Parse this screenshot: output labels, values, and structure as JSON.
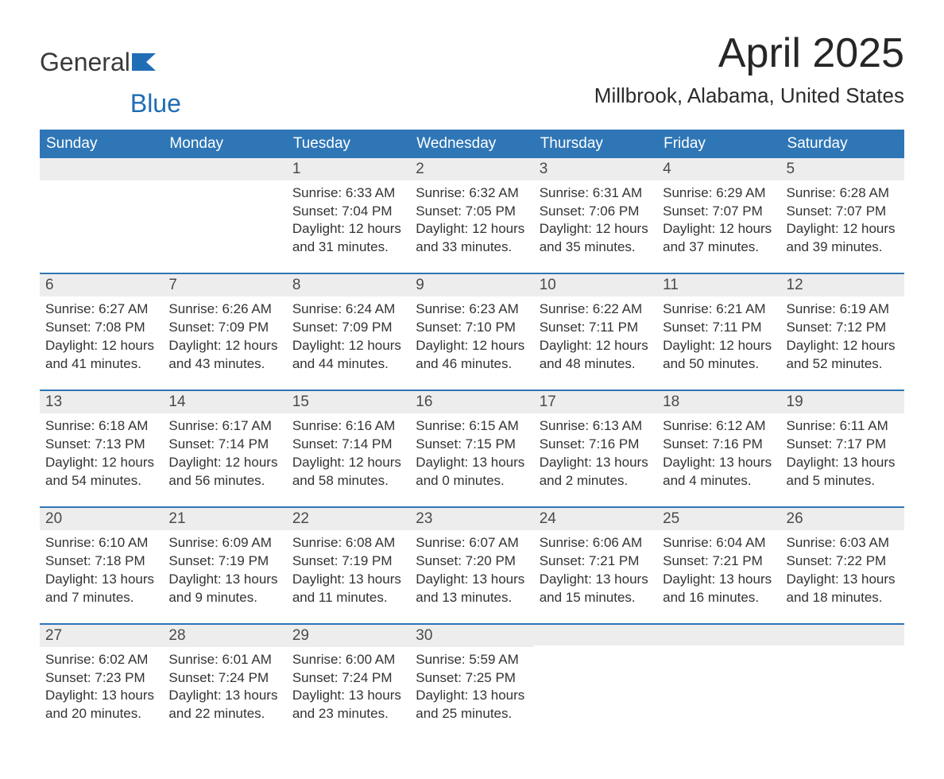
{
  "colors": {
    "header_bg": "#2f76b6",
    "header_text": "#ffffff",
    "date_strip_bg": "#ededed",
    "date_strip_text": "#4a4a4a",
    "week_divider": "#2f76b6",
    "body_text": "#333333",
    "page_bg": "#ffffff",
    "logo_gray": "#3a3a3a",
    "logo_blue": "#1f6db5"
  },
  "logo": {
    "part1": "General",
    "part2": "Blue"
  },
  "title": "April 2025",
  "location": "Millbrook, Alabama, United States",
  "day_headers": [
    "Sunday",
    "Monday",
    "Tuesday",
    "Wednesday",
    "Thursday",
    "Friday",
    "Saturday"
  ],
  "weeks": [
    [
      null,
      null,
      {
        "d": "1",
        "sr": "Sunrise: 6:33 AM",
        "ss": "Sunset: 7:04 PM",
        "dl1": "Daylight: 12 hours",
        "dl2": "and 31 minutes."
      },
      {
        "d": "2",
        "sr": "Sunrise: 6:32 AM",
        "ss": "Sunset: 7:05 PM",
        "dl1": "Daylight: 12 hours",
        "dl2": "and 33 minutes."
      },
      {
        "d": "3",
        "sr": "Sunrise: 6:31 AM",
        "ss": "Sunset: 7:06 PM",
        "dl1": "Daylight: 12 hours",
        "dl2": "and 35 minutes."
      },
      {
        "d": "4",
        "sr": "Sunrise: 6:29 AM",
        "ss": "Sunset: 7:07 PM",
        "dl1": "Daylight: 12 hours",
        "dl2": "and 37 minutes."
      },
      {
        "d": "5",
        "sr": "Sunrise: 6:28 AM",
        "ss": "Sunset: 7:07 PM",
        "dl1": "Daylight: 12 hours",
        "dl2": "and 39 minutes."
      }
    ],
    [
      {
        "d": "6",
        "sr": "Sunrise: 6:27 AM",
        "ss": "Sunset: 7:08 PM",
        "dl1": "Daylight: 12 hours",
        "dl2": "and 41 minutes."
      },
      {
        "d": "7",
        "sr": "Sunrise: 6:26 AM",
        "ss": "Sunset: 7:09 PM",
        "dl1": "Daylight: 12 hours",
        "dl2": "and 43 minutes."
      },
      {
        "d": "8",
        "sr": "Sunrise: 6:24 AM",
        "ss": "Sunset: 7:09 PM",
        "dl1": "Daylight: 12 hours",
        "dl2": "and 44 minutes."
      },
      {
        "d": "9",
        "sr": "Sunrise: 6:23 AM",
        "ss": "Sunset: 7:10 PM",
        "dl1": "Daylight: 12 hours",
        "dl2": "and 46 minutes."
      },
      {
        "d": "10",
        "sr": "Sunrise: 6:22 AM",
        "ss": "Sunset: 7:11 PM",
        "dl1": "Daylight: 12 hours",
        "dl2": "and 48 minutes."
      },
      {
        "d": "11",
        "sr": "Sunrise: 6:21 AM",
        "ss": "Sunset: 7:11 PM",
        "dl1": "Daylight: 12 hours",
        "dl2": "and 50 minutes."
      },
      {
        "d": "12",
        "sr": "Sunrise: 6:19 AM",
        "ss": "Sunset: 7:12 PM",
        "dl1": "Daylight: 12 hours",
        "dl2": "and 52 minutes."
      }
    ],
    [
      {
        "d": "13",
        "sr": "Sunrise: 6:18 AM",
        "ss": "Sunset: 7:13 PM",
        "dl1": "Daylight: 12 hours",
        "dl2": "and 54 minutes."
      },
      {
        "d": "14",
        "sr": "Sunrise: 6:17 AM",
        "ss": "Sunset: 7:14 PM",
        "dl1": "Daylight: 12 hours",
        "dl2": "and 56 minutes."
      },
      {
        "d": "15",
        "sr": "Sunrise: 6:16 AM",
        "ss": "Sunset: 7:14 PM",
        "dl1": "Daylight: 12 hours",
        "dl2": "and 58 minutes."
      },
      {
        "d": "16",
        "sr": "Sunrise: 6:15 AM",
        "ss": "Sunset: 7:15 PM",
        "dl1": "Daylight: 13 hours",
        "dl2": "and 0 minutes."
      },
      {
        "d": "17",
        "sr": "Sunrise: 6:13 AM",
        "ss": "Sunset: 7:16 PM",
        "dl1": "Daylight: 13 hours",
        "dl2": "and 2 minutes."
      },
      {
        "d": "18",
        "sr": "Sunrise: 6:12 AM",
        "ss": "Sunset: 7:16 PM",
        "dl1": "Daylight: 13 hours",
        "dl2": "and 4 minutes."
      },
      {
        "d": "19",
        "sr": "Sunrise: 6:11 AM",
        "ss": "Sunset: 7:17 PM",
        "dl1": "Daylight: 13 hours",
        "dl2": "and 5 minutes."
      }
    ],
    [
      {
        "d": "20",
        "sr": "Sunrise: 6:10 AM",
        "ss": "Sunset: 7:18 PM",
        "dl1": "Daylight: 13 hours",
        "dl2": "and 7 minutes."
      },
      {
        "d": "21",
        "sr": "Sunrise: 6:09 AM",
        "ss": "Sunset: 7:19 PM",
        "dl1": "Daylight: 13 hours",
        "dl2": "and 9 minutes."
      },
      {
        "d": "22",
        "sr": "Sunrise: 6:08 AM",
        "ss": "Sunset: 7:19 PM",
        "dl1": "Daylight: 13 hours",
        "dl2": "and 11 minutes."
      },
      {
        "d": "23",
        "sr": "Sunrise: 6:07 AM",
        "ss": "Sunset: 7:20 PM",
        "dl1": "Daylight: 13 hours",
        "dl2": "and 13 minutes."
      },
      {
        "d": "24",
        "sr": "Sunrise: 6:06 AM",
        "ss": "Sunset: 7:21 PM",
        "dl1": "Daylight: 13 hours",
        "dl2": "and 15 minutes."
      },
      {
        "d": "25",
        "sr": "Sunrise: 6:04 AM",
        "ss": "Sunset: 7:21 PM",
        "dl1": "Daylight: 13 hours",
        "dl2": "and 16 minutes."
      },
      {
        "d": "26",
        "sr": "Sunrise: 6:03 AM",
        "ss": "Sunset: 7:22 PM",
        "dl1": "Daylight: 13 hours",
        "dl2": "and 18 minutes."
      }
    ],
    [
      {
        "d": "27",
        "sr": "Sunrise: 6:02 AM",
        "ss": "Sunset: 7:23 PM",
        "dl1": "Daylight: 13 hours",
        "dl2": "and 20 minutes."
      },
      {
        "d": "28",
        "sr": "Sunrise: 6:01 AM",
        "ss": "Sunset: 7:24 PM",
        "dl1": "Daylight: 13 hours",
        "dl2": "and 22 minutes."
      },
      {
        "d": "29",
        "sr": "Sunrise: 6:00 AM",
        "ss": "Sunset: 7:24 PM",
        "dl1": "Daylight: 13 hours",
        "dl2": "and 23 minutes."
      },
      {
        "d": "30",
        "sr": "Sunrise: 5:59 AM",
        "ss": "Sunset: 7:25 PM",
        "dl1": "Daylight: 13 hours",
        "dl2": "and 25 minutes."
      },
      null,
      null,
      null
    ]
  ]
}
